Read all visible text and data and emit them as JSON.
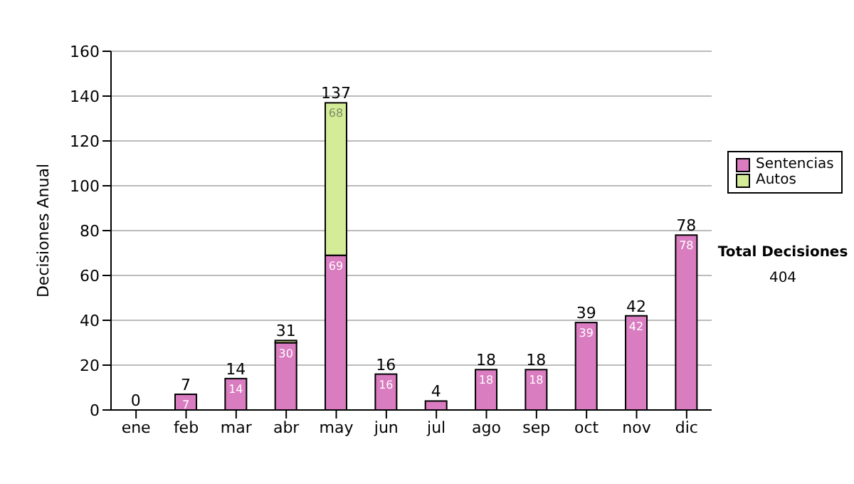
{
  "chart_data": {
    "type": "bar",
    "ylabel": "Decisiones Anual",
    "categories": [
      "ene",
      "feb",
      "mar",
      "abr",
      "may",
      "jun",
      "jul",
      "ago",
      "sep",
      "oct",
      "nov",
      "dic"
    ],
    "stacked": true,
    "series": [
      {
        "name": "Sentencias",
        "color": "#d97cc0",
        "values": [
          0,
          7,
          14,
          30,
          69,
          16,
          4,
          18,
          18,
          39,
          42,
          78
        ],
        "value_labels": [
          null,
          "7",
          "14",
          "30",
          "69",
          "16",
          null,
          "18",
          "18",
          "39",
          "42",
          "78"
        ]
      },
      {
        "name": "Autos",
        "color": "#d4eb98",
        "values": [
          0,
          0,
          0,
          1,
          68,
          0,
          0,
          0,
          0,
          0,
          0,
          0
        ],
        "value_labels": [
          null,
          null,
          null,
          null,
          "68",
          null,
          null,
          null,
          null,
          null,
          null,
          null
        ]
      }
    ],
    "totals": [
      "0",
      "7",
      "14",
      "31",
      "137",
      "16",
      "4",
      "18",
      "18",
      "39",
      "42",
      "78"
    ],
    "ylim": [
      0,
      160
    ],
    "yticks": [
      0,
      20,
      40,
      60,
      80,
      100,
      120,
      140,
      160
    ],
    "grid": "y",
    "legend": "right",
    "annotations": [
      "Total Decisiones",
      "404"
    ]
  }
}
